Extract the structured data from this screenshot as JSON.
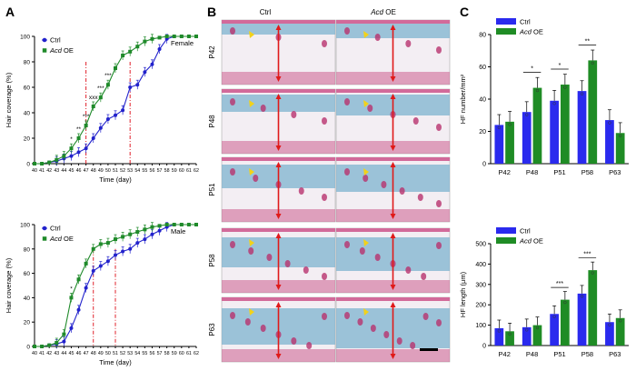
{
  "figure": {
    "panel_labels": {
      "a": "A",
      "b": "B",
      "c": "C"
    },
    "legend": {
      "ctrl": "Ctrl",
      "acd": "Acd",
      "acd_suffix": " OE"
    },
    "colors": {
      "ctrl": "#2222cc",
      "acd": "#1f8a2a",
      "ctrl_bar": "#2a2aee",
      "acd_bar": "#1f8c25",
      "marker_line": "#e0202a"
    }
  },
  "chart_data": [
    {
      "type": "line",
      "panel": "A",
      "title": "Female",
      "xlabel": "Time (day)",
      "ylabel": "Hair coverage (%)",
      "ylim": [
        0,
        100
      ],
      "yticks": [
        0,
        20,
        40,
        60,
        80,
        100
      ],
      "x": [
        40,
        41,
        42,
        43,
        44,
        45,
        46,
        47,
        48,
        49,
        50,
        51,
        52,
        53,
        54,
        55,
        56,
        57,
        58,
        59,
        60,
        61,
        62
      ],
      "series": [
        {
          "name": "Ctrl",
          "values": [
            0,
            0,
            1,
            2,
            4,
            6,
            9,
            12,
            20,
            28,
            35,
            38,
            42,
            60,
            62,
            72,
            78,
            90,
            98,
            100,
            100,
            100,
            100
          ]
        },
        {
          "name": "Acd OE",
          "values": [
            0,
            0,
            1,
            3,
            6,
            12,
            20,
            30,
            45,
            52,
            62,
            75,
            85,
            88,
            92,
            96,
            98,
            99,
            100,
            100,
            100,
            100,
            100
          ]
        }
      ],
      "significance": [
        "*",
        "**",
        "***",
        "xxx",
        "***",
        "***"
      ],
      "vlines": [
        47,
        53
      ]
    },
    {
      "type": "line",
      "panel": "A",
      "title": "Male",
      "xlabel": "Time (day)",
      "ylabel": "Hair coverage (%)",
      "ylim": [
        0,
        100
      ],
      "yticks": [
        0,
        20,
        40,
        60,
        80,
        100
      ],
      "x": [
        40,
        41,
        42,
        43,
        44,
        45,
        46,
        47,
        48,
        49,
        50,
        51,
        52,
        53,
        54,
        55,
        56,
        57,
        58,
        59,
        60,
        61,
        62
      ],
      "series": [
        {
          "name": "Ctrl",
          "values": [
            0,
            0,
            1,
            2,
            4,
            15,
            30,
            48,
            62,
            66,
            70,
            75,
            78,
            80,
            85,
            88,
            92,
            95,
            98,
            100,
            100,
            100,
            100
          ]
        },
        {
          "name": "Acd OE",
          "values": [
            0,
            0,
            1,
            3,
            10,
            40,
            55,
            68,
            80,
            84,
            85,
            88,
            90,
            92,
            94,
            96,
            98,
            99,
            100,
            100,
            100,
            100,
            100
          ]
        }
      ],
      "significance": [
        "*"
      ],
      "vlines": [
        48,
        51
      ]
    },
    {
      "type": "bar",
      "panel": "C",
      "ylabel": "HF number/mm²",
      "ylim": [
        0,
        80
      ],
      "yticks": [
        0,
        20,
        40,
        60,
        80
      ],
      "categories": [
        "P42",
        "P48",
        "P51",
        "P58",
        "P63"
      ],
      "series": [
        {
          "name": "Ctrl",
          "values": [
            24,
            32,
            39,
            45,
            27
          ]
        },
        {
          "name": "Acd OE",
          "values": [
            26,
            47,
            49,
            64,
            19
          ]
        }
      ],
      "significance": [
        "",
        "*",
        "*",
        "**",
        ""
      ]
    },
    {
      "type": "bar",
      "panel": "C",
      "ylabel": "HF length (μm)",
      "ylim": [
        0,
        500
      ],
      "yticks": [
        0,
        100,
        200,
        300,
        400,
        500
      ],
      "categories": [
        "P42",
        "P48",
        "P51",
        "P58",
        "P63"
      ],
      "series": [
        {
          "name": "Ctrl",
          "values": [
            85,
            90,
            155,
            255,
            115
          ]
        },
        {
          "name": "Acd OE",
          "values": [
            70,
            100,
            225,
            370,
            135
          ]
        }
      ],
      "significance": [
        "",
        "",
        "***",
        "***",
        ""
      ]
    }
  ],
  "histology": {
    "col_headers": [
      "Ctrl",
      "Acd"
    ],
    "col_header_suffix": " OE",
    "row_labels": [
      "P42",
      "P48",
      "P51",
      "P58",
      "P63"
    ]
  }
}
